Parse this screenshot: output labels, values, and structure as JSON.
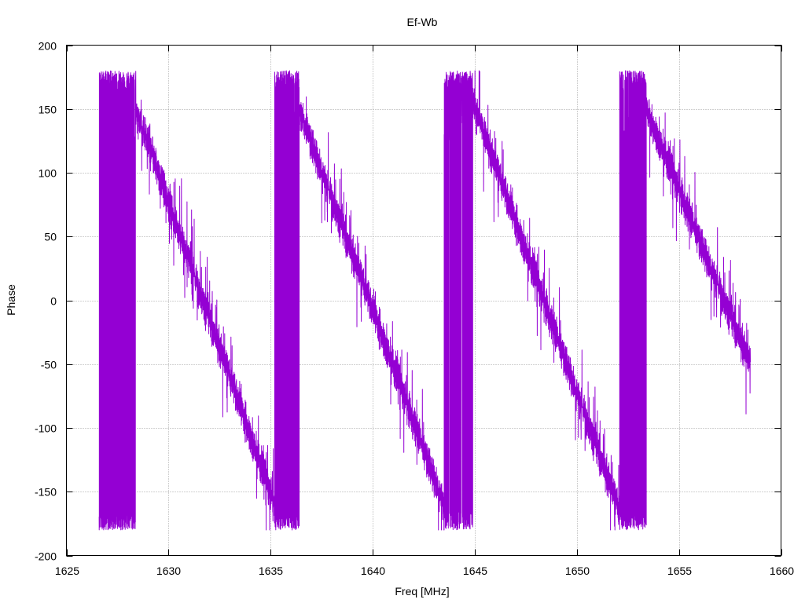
{
  "chart_data": {
    "type": "line",
    "title": "Ef-Wb",
    "xlabel": "Freq [MHz]",
    "ylabel": "Phase",
    "xlim": [
      1625,
      1660
    ],
    "ylim": [
      -200,
      200
    ],
    "xticks": [
      1625,
      1630,
      1635,
      1640,
      1645,
      1650,
      1655,
      1660
    ],
    "yticks": [
      -200,
      -150,
      -100,
      -50,
      0,
      50,
      100,
      150,
      200
    ],
    "grid": true,
    "legend": "none",
    "colors": {
      "series": "#9400d3",
      "grid": "#a0a0a0",
      "axis": "#000000"
    },
    "series": [
      {
        "style": "noisy phase trace",
        "x_range": [
          1626.6,
          1658.5
        ],
        "segments": [
          {
            "x": [
              1626.6,
              1628.4
            ],
            "y": [
              170,
              -170
            ],
            "kind": "wrap-noise"
          },
          {
            "x": [
              1628.4,
              1635.2
            ],
            "y": [
              150,
              -160
            ],
            "kind": "ramp"
          },
          {
            "x": [
              1635.2,
              1636.4
            ],
            "y": [
              175,
              -175
            ],
            "kind": "wrap-noise"
          },
          {
            "x": [
              1636.4,
              1643.5
            ],
            "y": [
              150,
              -160
            ],
            "kind": "ramp"
          },
          {
            "x": [
              1643.5,
              1644.9
            ],
            "y": [
              175,
              -175
            ],
            "kind": "wrap-noise"
          },
          {
            "x": [
              1644.9,
              1652.1
            ],
            "y": [
              155,
              -165
            ],
            "kind": "ramp"
          },
          {
            "x": [
              1652.1,
              1653.4
            ],
            "y": [
              175,
              -175
            ],
            "kind": "wrap-noise"
          },
          {
            "x": [
              1653.4,
              1658.5
            ],
            "y": [
              150,
              -50
            ],
            "kind": "ramp"
          }
        ]
      }
    ]
  }
}
